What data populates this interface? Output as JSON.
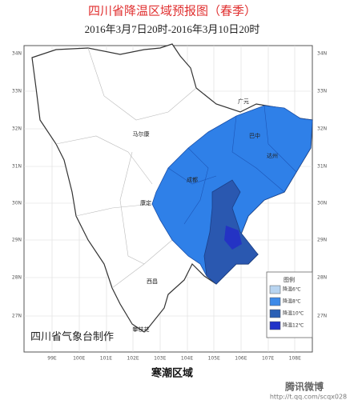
{
  "header": {
    "title": "四川省降温区域预报图（春季）",
    "subtitle": "2016年3月7日20时-2016年3月10日20时"
  },
  "map": {
    "lat_labels": [
      "34N",
      "33N",
      "32N",
      "31N",
      "30N",
      "29N",
      "28N",
      "27N"
    ],
    "lon_labels": [
      "99E",
      "100E",
      "101E",
      "102E",
      "103E",
      "104E",
      "105E",
      "106E",
      "107E",
      "108E"
    ],
    "cities": [
      "马尔康",
      "康定",
      "西昌",
      "攀枝花",
      "广元",
      "巴中",
      "达州",
      "成都"
    ],
    "credit": "四川省气象台制作"
  },
  "legend": {
    "title": "图例",
    "items": [
      "降温6℃",
      "降温8℃",
      "降温10℃",
      "降温12℃"
    ]
  },
  "caption": "寒潮区域",
  "watermark": {
    "brand": "腾讯微博",
    "url": "http://t.qq.com/scqx028"
  }
}
